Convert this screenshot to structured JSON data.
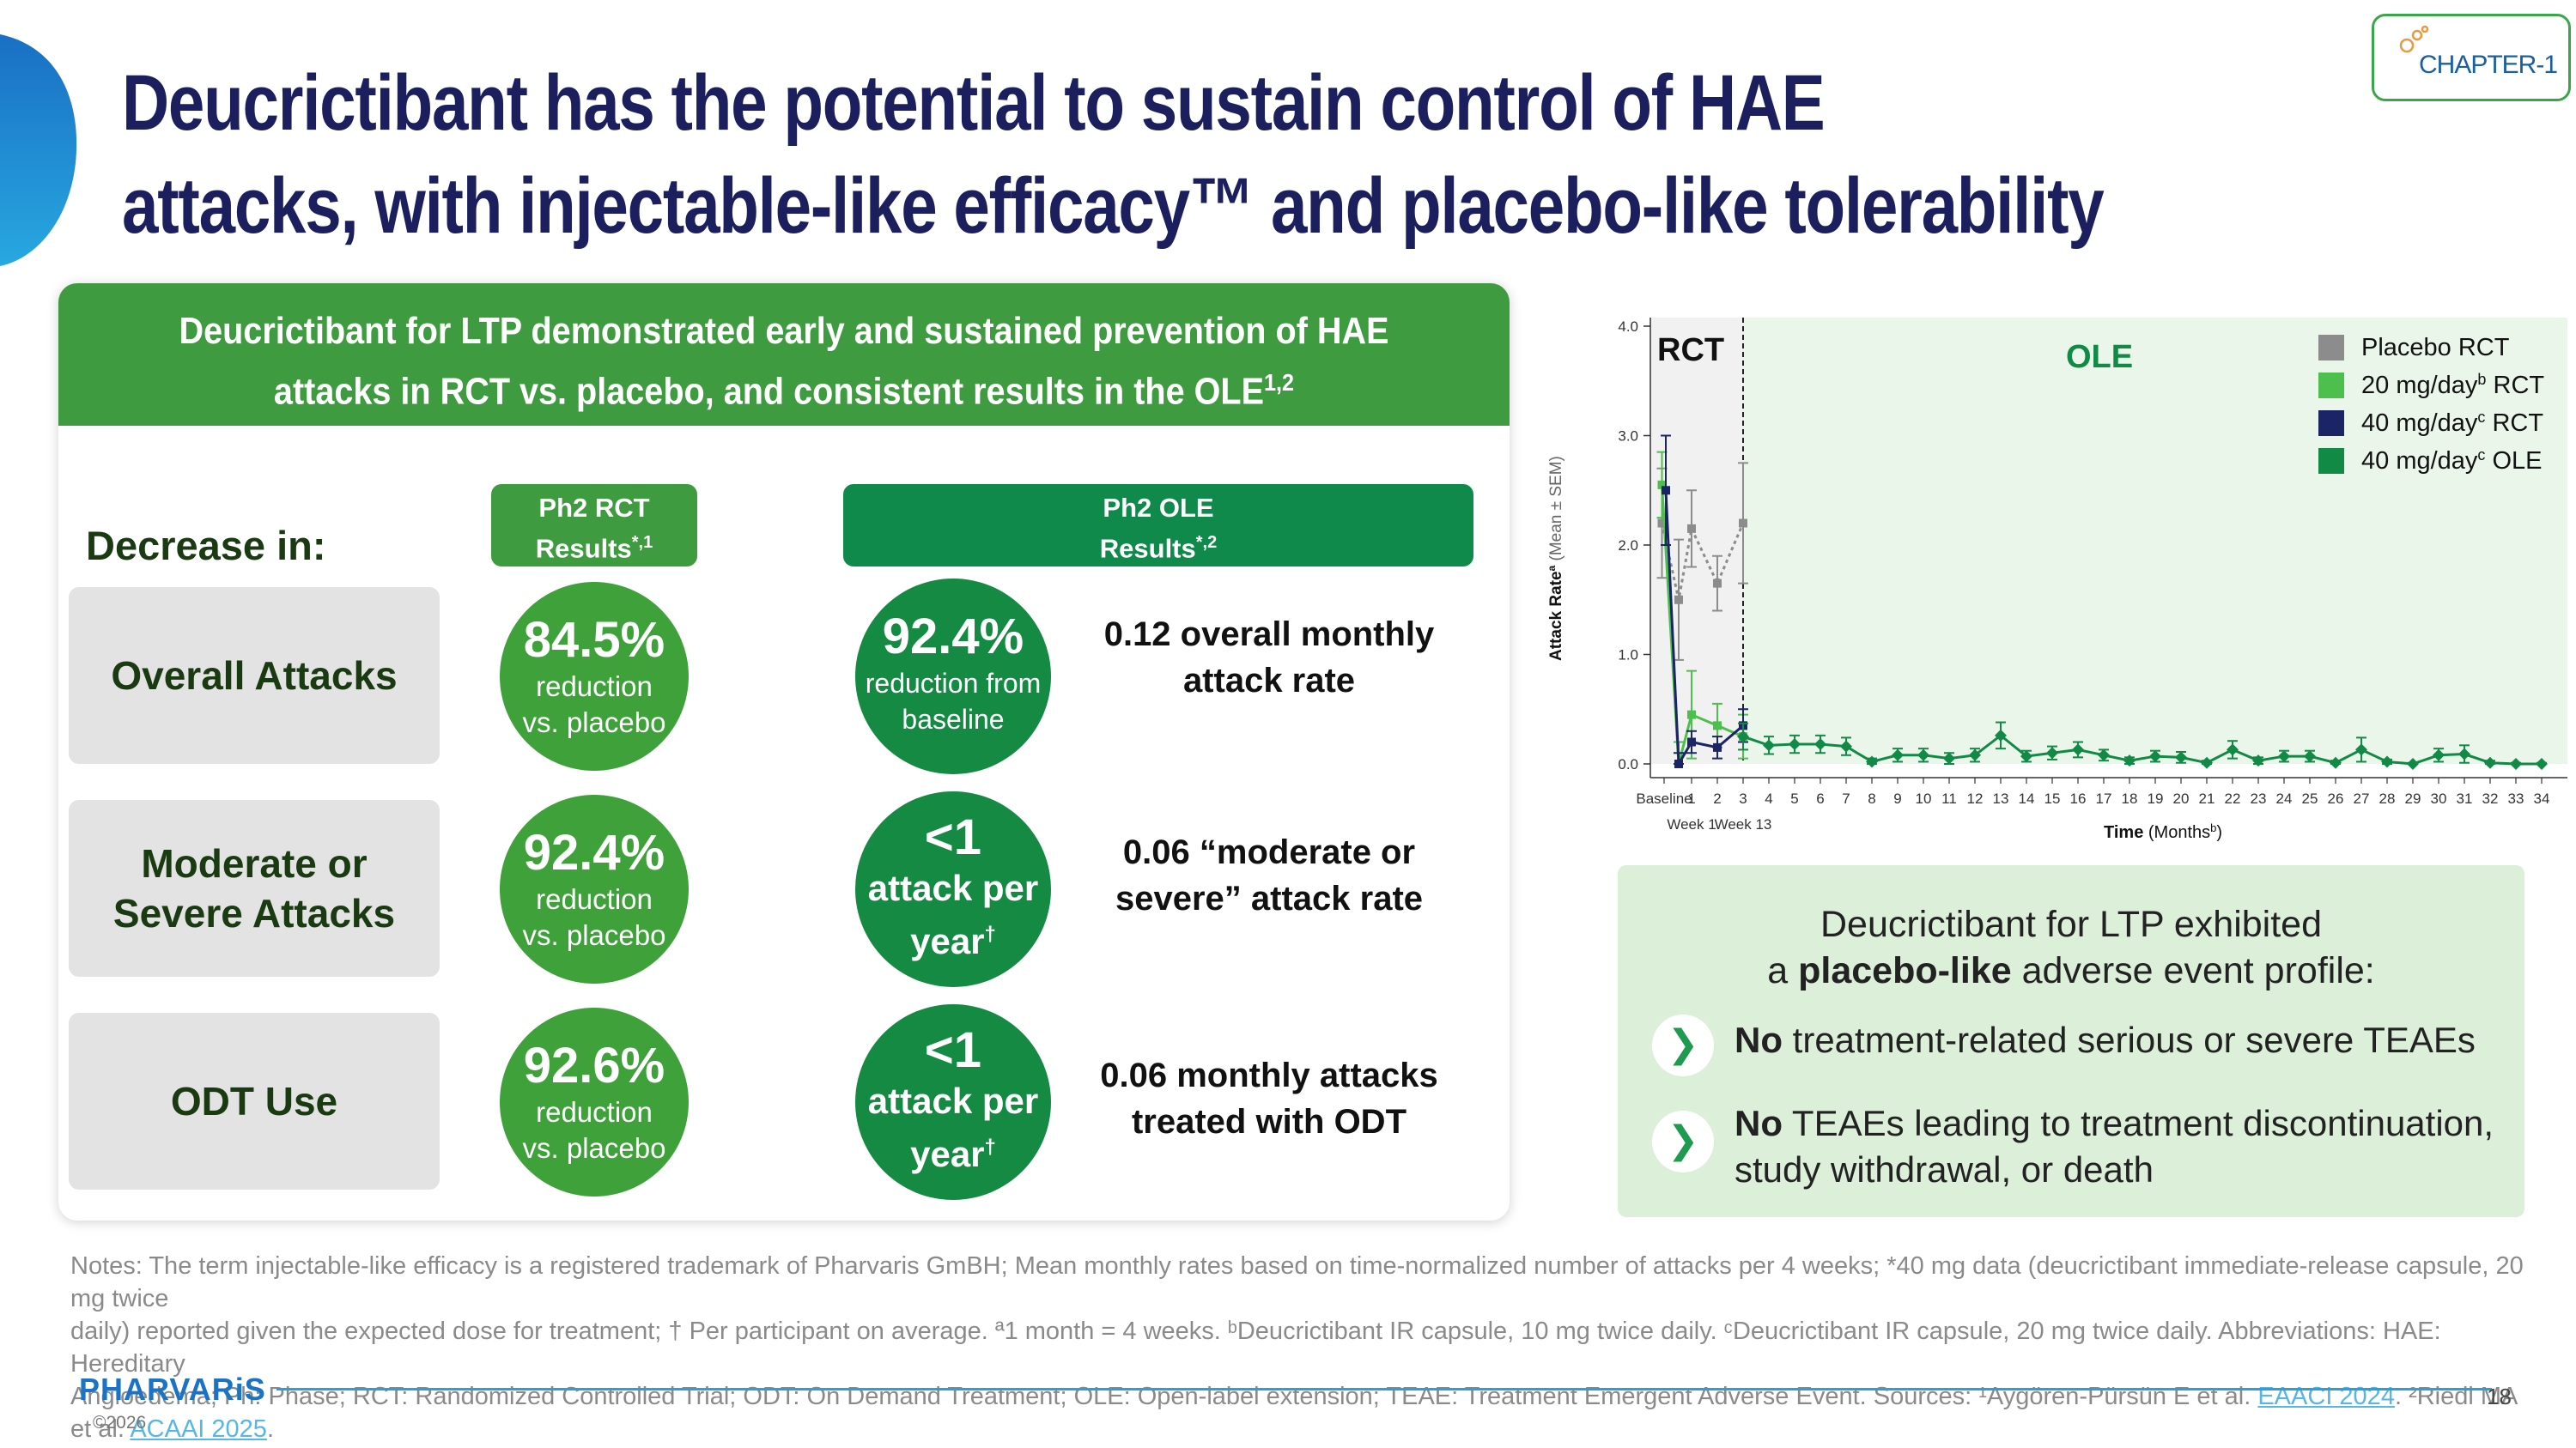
{
  "title": {
    "line1": "Deucrictibant has the potential to sustain control of HAE",
    "line2": "attacks, with injectable-like efficacy™ and placebo-like tolerability"
  },
  "logo": {
    "text": "CHAPTER-1"
  },
  "panel": {
    "header_line1": "Deucrictibant for LTP demonstrated early and sustained prevention of HAE",
    "header_line2": "attacks in RCT vs. placebo, and consistent results in the OLE",
    "header_sup": "1,2",
    "decrease_label": "Decrease in:",
    "col_rct_line1": "Ph2 RCT",
    "col_rct_line2": "Results",
    "col_rct_sup": "*,1",
    "col_ole_line1": "Ph2 OLE",
    "col_ole_line2": "Results",
    "col_ole_sup": "*,2",
    "rows": [
      {
        "label_line1": "Overall Attacks",
        "label_line2": "",
        "rct_value": "84.5%",
        "rct_sub1": "reduction",
        "rct_sub2": "vs. placebo",
        "ole_value": "92.4%",
        "ole_sub1": "reduction from",
        "ole_sub2": "baseline",
        "rate_line1": "0.12 overall monthly",
        "rate_line2": "attack rate"
      },
      {
        "label_line1": "Moderate or",
        "label_line2": "Severe Attacks",
        "rct_value": "92.4%",
        "rct_sub1": "reduction",
        "rct_sub2": "vs. placebo",
        "ole_value": "<1",
        "ole_sub1": "attack per",
        "ole_sub2": "year",
        "ole_sup": "†",
        "rate_line1": "0.06 “moderate or",
        "rate_line2": "severe” attack rate"
      },
      {
        "label_line1": "ODT Use",
        "label_line2": "",
        "rct_value": "92.6%",
        "rct_sub1": "reduction",
        "rct_sub2": "vs. placebo",
        "ole_value": "<1",
        "ole_sub1": "attack per",
        "ole_sub2": "year",
        "ole_sup": "†",
        "rate_line1": "0.06 monthly attacks",
        "rate_line2": "treated with ODT"
      }
    ]
  },
  "colors": {
    "navy": "#1c1f5e",
    "rct_green": "#3f9b3f",
    "ole_green": "#0f8a4a",
    "circle_rct": "#3fa13a",
    "circle_ole": "#148a43",
    "placebo_gray": "#8c8c8c",
    "dose20_green": "#4cbf4c",
    "dose40_navy": "#1b2464",
    "ole_series": "#118a45"
  },
  "chart_data": {
    "type": "line",
    "title": "",
    "ylabel": "Attack Rate",
    "ylabel_sup": "a",
    "ylabel_suffix": "(Mean ± SEM)",
    "xlabel": "Time",
    "xlabel_suffix": "(Months",
    "xlabel_sup": "b",
    "xlabel_close": ")",
    "ylim": [
      0,
      4
    ],
    "yticks": [
      "0.0",
      "1.0",
      "2.0",
      "3.0",
      "4.0"
    ],
    "x_categories": [
      "Baseline",
      "1",
      "2",
      "3",
      "4",
      "5",
      "6",
      "7",
      "8",
      "9",
      "10",
      "11",
      "12",
      "13",
      "14",
      "15",
      "16",
      "17",
      "18",
      "19",
      "20",
      "21",
      "22",
      "23",
      "24",
      "25",
      "26",
      "27",
      "28",
      "29",
      "30",
      "31",
      "32",
      "33",
      "34"
    ],
    "x_sublabels": {
      "week1": "Week 1",
      "week13": "Week 13"
    },
    "region_labels": {
      "rct": "RCT",
      "ole": "OLE"
    },
    "legend": [
      {
        "name": "Placebo RCT",
        "name_pre": "Placebo RCT",
        "sup": "",
        "name_post": ""
      },
      {
        "name": "20 mg/day RCT",
        "name_pre": "20 mg/day",
        "sup": "b",
        "name_post": " RCT"
      },
      {
        "name": "40 mg/day RCT",
        "name_pre": "40 mg/day",
        "sup": "c",
        "name_post": " RCT"
      },
      {
        "name": "40 mg/day OLE",
        "name_pre": "40 mg/day",
        "sup": "c",
        "name_post": " OLE"
      }
    ],
    "series": [
      {
        "name": "Placebo RCT",
        "x": [
          -0.15,
          0.5,
          1,
          2,
          3
        ],
        "y": [
          2.2,
          1.5,
          2.15,
          1.65,
          2.2
        ],
        "err": [
          0.5,
          0.55,
          0.35,
          0.25,
          0.55
        ]
      },
      {
        "name": "20 mg/day RCT",
        "x": [
          -0.15,
          0.5,
          1,
          2,
          3
        ],
        "y": [
          2.55,
          0.0,
          0.45,
          0.35,
          0.25
        ],
        "err": [
          0.3,
          0.2,
          0.4,
          0.2,
          0.2
        ]
      },
      {
        "name": "40 mg/day RCT",
        "x": [
          0,
          0.5,
          1,
          2,
          3
        ],
        "y": [
          2.5,
          0.0,
          0.2,
          0.15,
          0.35
        ],
        "err": [
          0.5,
          0.1,
          0.1,
          0.1,
          0.15
        ]
      },
      {
        "name": "40 mg/day OLE",
        "x": [
          3,
          4,
          5,
          6,
          7,
          8,
          9,
          10,
          11,
          12,
          13,
          14,
          15,
          16,
          17,
          18,
          19,
          20,
          21,
          22,
          23,
          24,
          25,
          26,
          27,
          28,
          29,
          30,
          31,
          32,
          33,
          34
        ],
        "y": [
          0.25,
          0.17,
          0.18,
          0.18,
          0.16,
          0.02,
          0.08,
          0.08,
          0.05,
          0.08,
          0.26,
          0.07,
          0.1,
          0.13,
          0.08,
          0.03,
          0.07,
          0.06,
          0.01,
          0.13,
          0.03,
          0.07,
          0.07,
          0.01,
          0.13,
          0.02,
          0.0,
          0.08,
          0.09,
          0.01,
          0.0,
          0.0
        ],
        "err": [
          0.12,
          0.08,
          0.08,
          0.08,
          0.08,
          0.03,
          0.06,
          0.06,
          0.05,
          0.06,
          0.12,
          0.05,
          0.06,
          0.07,
          0.05,
          0.03,
          0.05,
          0.05,
          0.02,
          0.08,
          0.03,
          0.05,
          0.05,
          0.02,
          0.11,
          0.02,
          0.01,
          0.06,
          0.08,
          0.02,
          0.01,
          0.01
        ]
      }
    ]
  },
  "ae": {
    "line1": "Deucrictibant for LTP exhibited",
    "line2_pre": "a ",
    "line2_bold": "placebo-like",
    "line2_post": " adverse event profile:",
    "b1_bold": "No",
    "b1_text": " treatment-related serious or severe TEAEs",
    "b2_bold": "No",
    "b2_text_line1": " TEAEs leading to treatment discontinuation,",
    "b2_text_line2": "study withdrawal, or death"
  },
  "notes": {
    "line1": "Notes: The term injectable-like efficacy is a registered trademark of Pharvaris GmBH; Mean monthly rates based on time-normalized number of attacks per 4 weeks; *40 mg data (deucrictibant immediate-release capsule, 20 mg twice",
    "line2": "daily) reported given the expected dose for treatment; † Per participant on average. ª1 month = 4 weeks. ᵇDeucrictibant IR capsule, 10 mg twice daily. ᶜDeucrictibant IR capsule, 20 mg twice daily. Abbreviations: HAE: Hereditary",
    "line3_pre": "Angioedema; Ph: Phase; RCT: Randomized Controlled Trial; ODT: On Demand Treatment; OLE: Open-label extension; TEAE: Treatment Emergent Adverse Event. Sources: ¹Aygören-Pürsün E et al. ",
    "link1": "EAACI 2024",
    "mid": ". ²Riedl MA et al. ",
    "link2": "ACAAI 2025",
    "end": "."
  },
  "footer": {
    "brand": "PHARVARiS",
    "copyright": "©2026",
    "page": "18"
  }
}
